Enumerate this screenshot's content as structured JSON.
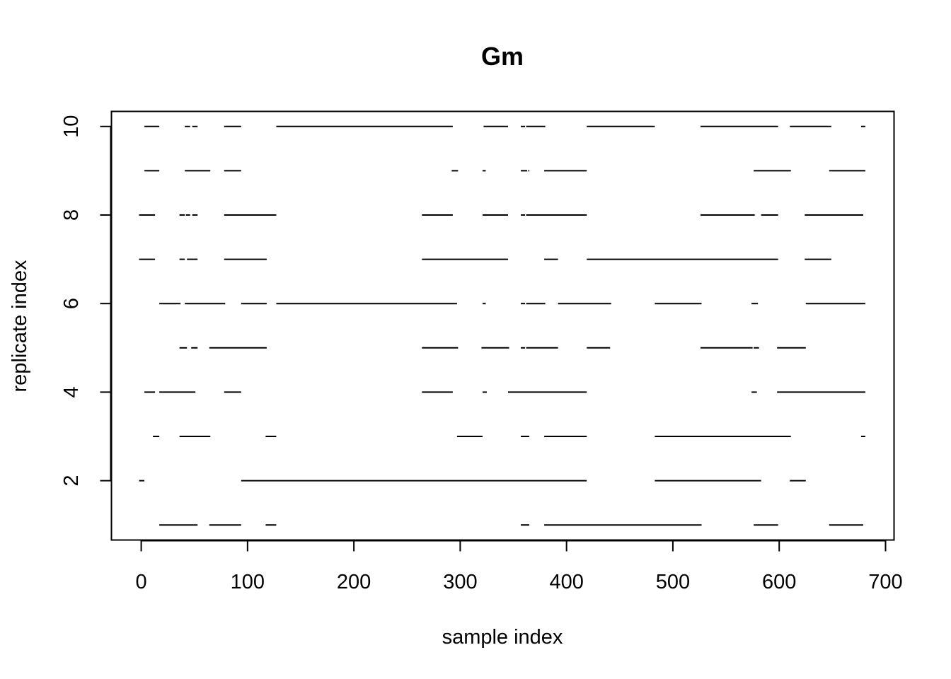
{
  "chart_data": {
    "type": "segment",
    "title": "Gm",
    "xlabel": "sample index",
    "ylabel": "replicate index",
    "xlim": [
      -28,
      708
    ],
    "ylim": [
      0.66,
      10.34
    ],
    "x_ticks": [
      0,
      100,
      200,
      300,
      400,
      500,
      600,
      700
    ],
    "y_ticks": [
      2,
      4,
      6,
      8,
      10
    ],
    "grid": false,
    "legend": "none",
    "line_color": "#000000",
    "rows": [
      {
        "replicate": 1,
        "segments": [
          [
            17,
            53
          ],
          [
            64,
            94
          ],
          [
            117,
            127
          ],
          [
            357,
            365
          ],
          [
            379,
            527
          ],
          [
            576,
            599
          ],
          [
            647,
            679
          ]
        ]
      },
      {
        "replicate": 2,
        "segments": [
          [
            -2,
            3
          ],
          [
            94,
            419
          ],
          [
            483,
            583
          ],
          [
            610,
            625
          ]
        ]
      },
      {
        "replicate": 3,
        "segments": [
          [
            11,
            17
          ],
          [
            36,
            65
          ],
          [
            117,
            127
          ],
          [
            297,
            321
          ],
          [
            357,
            365
          ],
          [
            379,
            419
          ],
          [
            483,
            611
          ],
          [
            677,
            681
          ]
        ]
      },
      {
        "replicate": 4,
        "segments": [
          [
            3,
            13
          ],
          [
            17,
            51
          ],
          [
            78,
            94
          ],
          [
            264,
            293
          ],
          [
            321,
            325
          ],
          [
            345,
            419
          ],
          [
            574,
            579
          ],
          [
            598,
            681
          ]
        ]
      },
      {
        "replicate": 5,
        "segments": [
          [
            36,
            43
          ],
          [
            47,
            53
          ],
          [
            64,
            118
          ],
          [
            264,
            298
          ],
          [
            320,
            346
          ],
          [
            357,
            361
          ],
          [
            362,
            392
          ],
          [
            419,
            441
          ],
          [
            526,
            575
          ],
          [
            576,
            581
          ],
          [
            598,
            625
          ]
        ]
      },
      {
        "replicate": 6,
        "segments": [
          [
            17,
            37
          ],
          [
            41,
            79
          ],
          [
            94,
            118
          ],
          [
            127,
            297
          ],
          [
            321,
            324
          ],
          [
            357,
            361
          ],
          [
            362,
            380
          ],
          [
            392,
            442
          ],
          [
            483,
            527
          ],
          [
            574,
            580
          ],
          [
            625,
            681
          ]
        ]
      },
      {
        "replicate": 7,
        "segments": [
          [
            -2,
            13
          ],
          [
            36,
            41
          ],
          [
            43,
            53
          ],
          [
            78,
            118
          ],
          [
            264,
            345
          ],
          [
            379,
            392
          ],
          [
            419,
            599
          ],
          [
            624,
            649
          ]
        ]
      },
      {
        "replicate": 8,
        "segments": [
          [
            -2,
            13
          ],
          [
            36,
            41
          ],
          [
            42,
            46
          ],
          [
            48,
            53
          ],
          [
            78,
            127
          ],
          [
            264,
            293
          ],
          [
            321,
            345
          ],
          [
            357,
            361
          ],
          [
            362,
            419
          ],
          [
            526,
            577
          ],
          [
            583,
            599
          ],
          [
            624,
            679
          ]
        ]
      },
      {
        "replicate": 9,
        "segments": [
          [
            3,
            17
          ],
          [
            41,
            65
          ],
          [
            78,
            94
          ],
          [
            292,
            298
          ],
          [
            321,
            324
          ],
          [
            357,
            363
          ],
          [
            364,
            365
          ],
          [
            379,
            419
          ],
          [
            576,
            611
          ],
          [
            647,
            681
          ]
        ]
      },
      {
        "replicate": 10,
        "segments": [
          [
            3,
            17
          ],
          [
            41,
            46
          ],
          [
            48,
            53
          ],
          [
            78,
            94
          ],
          [
            127,
            293
          ],
          [
            322,
            345
          ],
          [
            357,
            361
          ],
          [
            362,
            380
          ],
          [
            419,
            483
          ],
          [
            526,
            599
          ],
          [
            610,
            649
          ],
          [
            677,
            681
          ]
        ]
      }
    ]
  }
}
